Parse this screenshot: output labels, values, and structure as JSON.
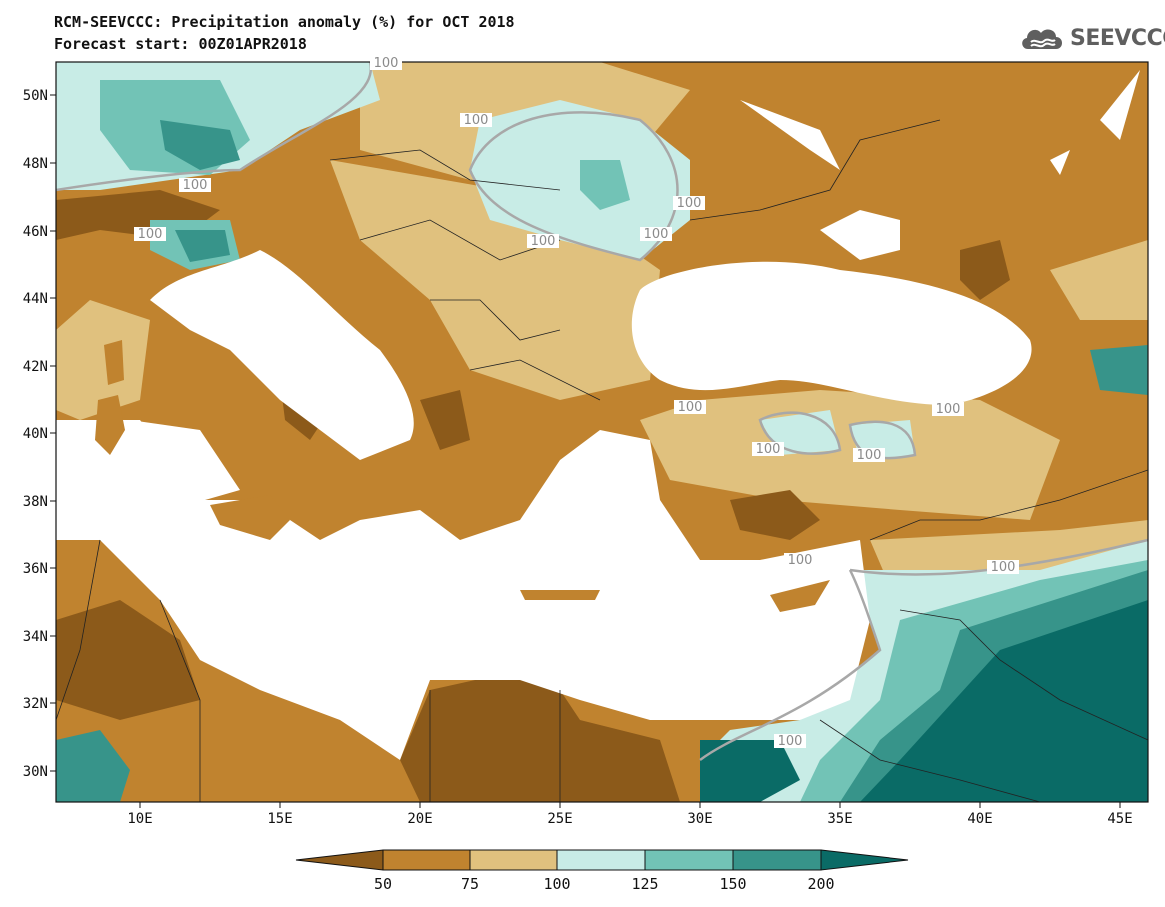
{
  "title": "RCM-SEEVCCC: Precipitation anomaly (%) for OCT 2018",
  "subtitle": "Forecast start: 00Z01APR2018",
  "logo": {
    "text": "SEEVCCC",
    "icon": "cloud-icon",
    "color": "#5f5f5f"
  },
  "map": {
    "lon_range": [
      7,
      46
    ],
    "lat_range": [
      29,
      51
    ],
    "lat_ticks": [
      "50N",
      "48N",
      "46N",
      "44N",
      "42N",
      "40N",
      "38N",
      "36N",
      "34N",
      "32N",
      "30N"
    ],
    "lon_ticks": [
      "10E",
      "15E",
      "20E",
      "25E",
      "30E",
      "35E",
      "40E",
      "45E"
    ],
    "contour_labels": [
      "100",
      "100",
      "100",
      "100",
      "100",
      "100",
      "100",
      "100",
      "100",
      "100",
      "100",
      "100",
      "100",
      "100"
    ]
  },
  "colorbar": {
    "levels": [
      "50",
      "75",
      "100",
      "125",
      "150",
      "200"
    ],
    "colors": [
      "#8c5a1a",
      "#c0832f",
      "#e0c17e",
      "#c8ece6",
      "#72c3b6",
      "#37948a",
      "#0a6b66"
    ]
  },
  "palette": {
    "dark_brown": "#8c5a1a",
    "brown": "#c0832f",
    "tan": "#e0c17e",
    "light_teal": "#c8ece6",
    "teal": "#72c3b6",
    "dark_teal": "#37948a",
    "deep_teal": "#0a6b66",
    "contour_line": "#a8a8a8",
    "sea": "#ffffff"
  }
}
